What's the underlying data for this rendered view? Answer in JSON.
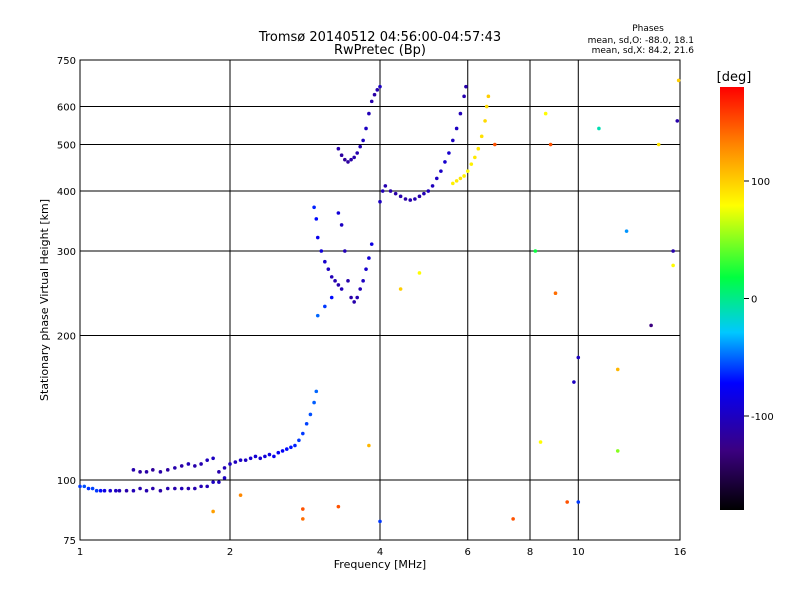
{
  "header": {
    "title": "Tromsø 20140512 04:56:00-04:57:43",
    "subtitle": "RwPretec (Bp)"
  },
  "phase_stats": {
    "title": "Phases",
    "line_o": "mean, sd,O: -88.0, 18.1",
    "line_x": "mean, sd,X: 84.2, 21.6"
  },
  "chart_data": {
    "type": "scatter",
    "xlabel": "Frequency [MHz]",
    "ylabel": "Stationary phase Virtual Height [km]",
    "x_scale": "log",
    "y_scale": "log",
    "xlim": [
      1,
      16
    ],
    "ylim": [
      75,
      750
    ],
    "x_ticks": [
      1,
      2,
      4,
      6,
      8,
      10,
      16
    ],
    "y_ticks": [
      75,
      100,
      200,
      300,
      400,
      500,
      600,
      750
    ],
    "x_tick_labels": [
      "1",
      "2",
      "4",
      "6",
      "8",
      "10",
      "16"
    ],
    "y_tick_labels": [
      "75",
      "100",
      "200",
      "300",
      "400",
      "500",
      "600",
      "750"
    ],
    "grid": true,
    "colorbar": {
      "label": "[deg]",
      "range": [
        -180,
        180
      ],
      "ticks": [
        100,
        0,
        -100
      ],
      "tick_labels": [
        "100",
        "0",
        "-100"
      ]
    },
    "series": [
      {
        "points": [
          [
            1.0,
            97,
            -60
          ],
          [
            1.02,
            97,
            -55
          ],
          [
            1.04,
            96,
            -62
          ],
          [
            1.06,
            96,
            -58
          ],
          [
            1.08,
            95,
            -60
          ],
          [
            1.1,
            95,
            -70
          ],
          [
            1.12,
            95,
            -85
          ],
          [
            1.15,
            95,
            -95
          ],
          [
            1.18,
            95,
            -100
          ],
          [
            1.2,
            95,
            -105
          ],
          [
            1.24,
            95,
            -110
          ],
          [
            1.28,
            95,
            -105
          ],
          [
            1.32,
            96,
            -110
          ],
          [
            1.36,
            95,
            -108
          ],
          [
            1.4,
            96,
            -110
          ],
          [
            1.45,
            95,
            -112
          ],
          [
            1.5,
            96,
            -108
          ],
          [
            1.55,
            96,
            -110
          ],
          [
            1.6,
            96,
            -105
          ],
          [
            1.65,
            96,
            -110
          ],
          [
            1.7,
            96,
            -108
          ],
          [
            1.75,
            97,
            -106
          ],
          [
            1.8,
            97,
            -104
          ],
          [
            1.85,
            99,
            -100
          ],
          [
            1.9,
            99,
            -102
          ],
          [
            1.95,
            101,
            -100
          ]
        ]
      },
      {
        "points": [
          [
            1.28,
            105,
            -110
          ],
          [
            1.32,
            104,
            -115
          ],
          [
            1.36,
            104,
            -112
          ],
          [
            1.4,
            105,
            -118
          ],
          [
            1.45,
            104,
            -112
          ],
          [
            1.5,
            105,
            -115
          ],
          [
            1.55,
            106,
            -110
          ],
          [
            1.6,
            107,
            -112
          ],
          [
            1.65,
            108,
            -105
          ],
          [
            1.7,
            107,
            -110
          ],
          [
            1.75,
            108,
            -108
          ],
          [
            1.8,
            110,
            -102
          ],
          [
            1.85,
            111,
            -100
          ]
        ]
      },
      {
        "points": [
          [
            1.9,
            104,
            -110
          ],
          [
            1.95,
            106,
            -105
          ],
          [
            2.0,
            108,
            -100
          ],
          [
            2.05,
            109,
            -102
          ],
          [
            2.1,
            110,
            -98
          ],
          [
            2.15,
            110,
            -100
          ],
          [
            2.2,
            111,
            -95
          ],
          [
            2.25,
            112,
            -92
          ],
          [
            2.3,
            111,
            -95
          ],
          [
            2.35,
            112,
            -90
          ],
          [
            2.4,
            113,
            -85
          ],
          [
            2.45,
            112,
            -80
          ],
          [
            2.5,
            114,
            -78
          ],
          [
            2.55,
            115,
            -75
          ],
          [
            2.6,
            116,
            -70
          ],
          [
            2.65,
            117,
            -68
          ],
          [
            2.7,
            118,
            -65
          ],
          [
            2.75,
            121,
            -60
          ],
          [
            2.8,
            125,
            -60
          ],
          [
            2.85,
            131,
            -58
          ],
          [
            2.9,
            137,
            -55
          ],
          [
            2.95,
            145,
            -52
          ],
          [
            2.98,
            153,
            -50
          ]
        ]
      },
      {
        "points": [
          [
            2.95,
            370,
            -65
          ],
          [
            2.98,
            350,
            -70
          ],
          [
            3.0,
            320,
            -80
          ],
          [
            3.05,
            300,
            -90
          ],
          [
            3.1,
            285,
            -95
          ],
          [
            3.15,
            275,
            -100
          ],
          [
            3.2,
            265,
            -105
          ],
          [
            3.25,
            260,
            -108
          ],
          [
            3.3,
            255,
            -110
          ],
          [
            3.35,
            250,
            -105
          ],
          [
            3.2,
            240,
            -70
          ],
          [
            3.1,
            230,
            -60
          ],
          [
            3.0,
            220,
            -50
          ]
        ]
      },
      {
        "points": [
          [
            3.3,
            360,
            -90
          ],
          [
            3.35,
            340,
            -100
          ],
          [
            3.4,
            300,
            -105
          ],
          [
            3.45,
            260,
            -110
          ],
          [
            3.5,
            240,
            -112
          ],
          [
            3.55,
            235,
            -110
          ],
          [
            3.6,
            240,
            -108
          ],
          [
            3.65,
            250,
            -105
          ],
          [
            3.7,
            260,
            -100
          ],
          [
            3.75,
            275,
            -95
          ],
          [
            3.8,
            290,
            -90
          ],
          [
            3.85,
            310,
            -85
          ]
        ]
      },
      {
        "points": [
          [
            3.3,
            490,
            -110
          ],
          [
            3.35,
            475,
            -115
          ],
          [
            3.4,
            465,
            -118
          ],
          [
            3.45,
            460,
            -115
          ],
          [
            3.5,
            465,
            -112
          ],
          [
            3.55,
            470,
            -110
          ],
          [
            3.6,
            480,
            -108
          ],
          [
            3.65,
            495,
            -105
          ],
          [
            3.7,
            510,
            -100
          ],
          [
            3.75,
            540,
            -100
          ],
          [
            3.8,
            580,
            -105
          ],
          [
            3.85,
            615,
            -110
          ],
          [
            3.9,
            635,
            -112
          ],
          [
            3.95,
            650,
            -108
          ],
          [
            4.0,
            660,
            -100
          ]
        ]
      },
      {
        "points": [
          [
            4.0,
            380,
            -100
          ],
          [
            4.05,
            400,
            -105
          ],
          [
            4.1,
            410,
            -108
          ],
          [
            4.2,
            400,
            -110
          ],
          [
            4.3,
            395,
            -112
          ],
          [
            4.4,
            390,
            -110
          ],
          [
            4.5,
            385,
            -112
          ],
          [
            4.6,
            383,
            -110
          ],
          [
            4.7,
            385,
            -108
          ],
          [
            4.8,
            390,
            -110
          ],
          [
            4.9,
            395,
            -106
          ],
          [
            5.0,
            400,
            -104
          ],
          [
            5.1,
            410,
            -102
          ],
          [
            5.2,
            425,
            -100
          ],
          [
            5.3,
            440,
            -98
          ],
          [
            5.4,
            460,
            -95
          ],
          [
            5.5,
            480,
            -95
          ],
          [
            5.6,
            510,
            -100
          ],
          [
            5.7,
            540,
            -100
          ],
          [
            5.8,
            580,
            -105
          ],
          [
            5.9,
            630,
            -108
          ],
          [
            5.95,
            660,
            -110
          ]
        ]
      },
      {
        "points": [
          [
            5.6,
            415,
            85
          ],
          [
            5.7,
            420,
            88
          ],
          [
            5.8,
            425,
            90
          ],
          [
            5.9,
            430,
            85
          ],
          [
            6.0,
            440,
            80
          ],
          [
            6.1,
            455,
            85
          ],
          [
            6.2,
            470,
            88
          ],
          [
            6.3,
            490,
            90
          ],
          [
            6.4,
            520,
            92
          ],
          [
            6.5,
            560,
            95
          ],
          [
            6.55,
            600,
            95
          ],
          [
            6.6,
            630,
            100
          ]
        ]
      },
      {
        "points": [
          [
            1.85,
            86,
            120
          ],
          [
            2.1,
            93,
            130
          ],
          [
            2.8,
            87,
            150
          ],
          [
            2.8,
            83,
            140
          ],
          [
            3.3,
            88,
            150
          ],
          [
            3.8,
            118,
            110
          ],
          [
            4.0,
            82,
            -60
          ],
          [
            4.4,
            250,
            100
          ],
          [
            4.8,
            270,
            80
          ],
          [
            6.8,
            500,
            150
          ],
          [
            7.4,
            83,
            150
          ],
          [
            8.2,
            300,
            20
          ],
          [
            8.4,
            120,
            80
          ],
          [
            8.6,
            580,
            80
          ],
          [
            8.8,
            500,
            150
          ],
          [
            9.0,
            245,
            140
          ],
          [
            9.5,
            90,
            150
          ],
          [
            9.8,
            160,
            -100
          ],
          [
            10.0,
            180,
            -100
          ],
          [
            10.0,
            90,
            -60
          ],
          [
            11.0,
            540,
            -10
          ],
          [
            12.0,
            170,
            110
          ],
          [
            12.0,
            115,
            50
          ],
          [
            12.5,
            330,
            -40
          ],
          [
            14.0,
            210,
            -130
          ],
          [
            14.5,
            500,
            90
          ],
          [
            15.5,
            280,
            80
          ],
          [
            15.5,
            300,
            -110
          ],
          [
            15.8,
            560,
            -110
          ],
          [
            15.9,
            680,
            100
          ]
        ]
      }
    ]
  }
}
